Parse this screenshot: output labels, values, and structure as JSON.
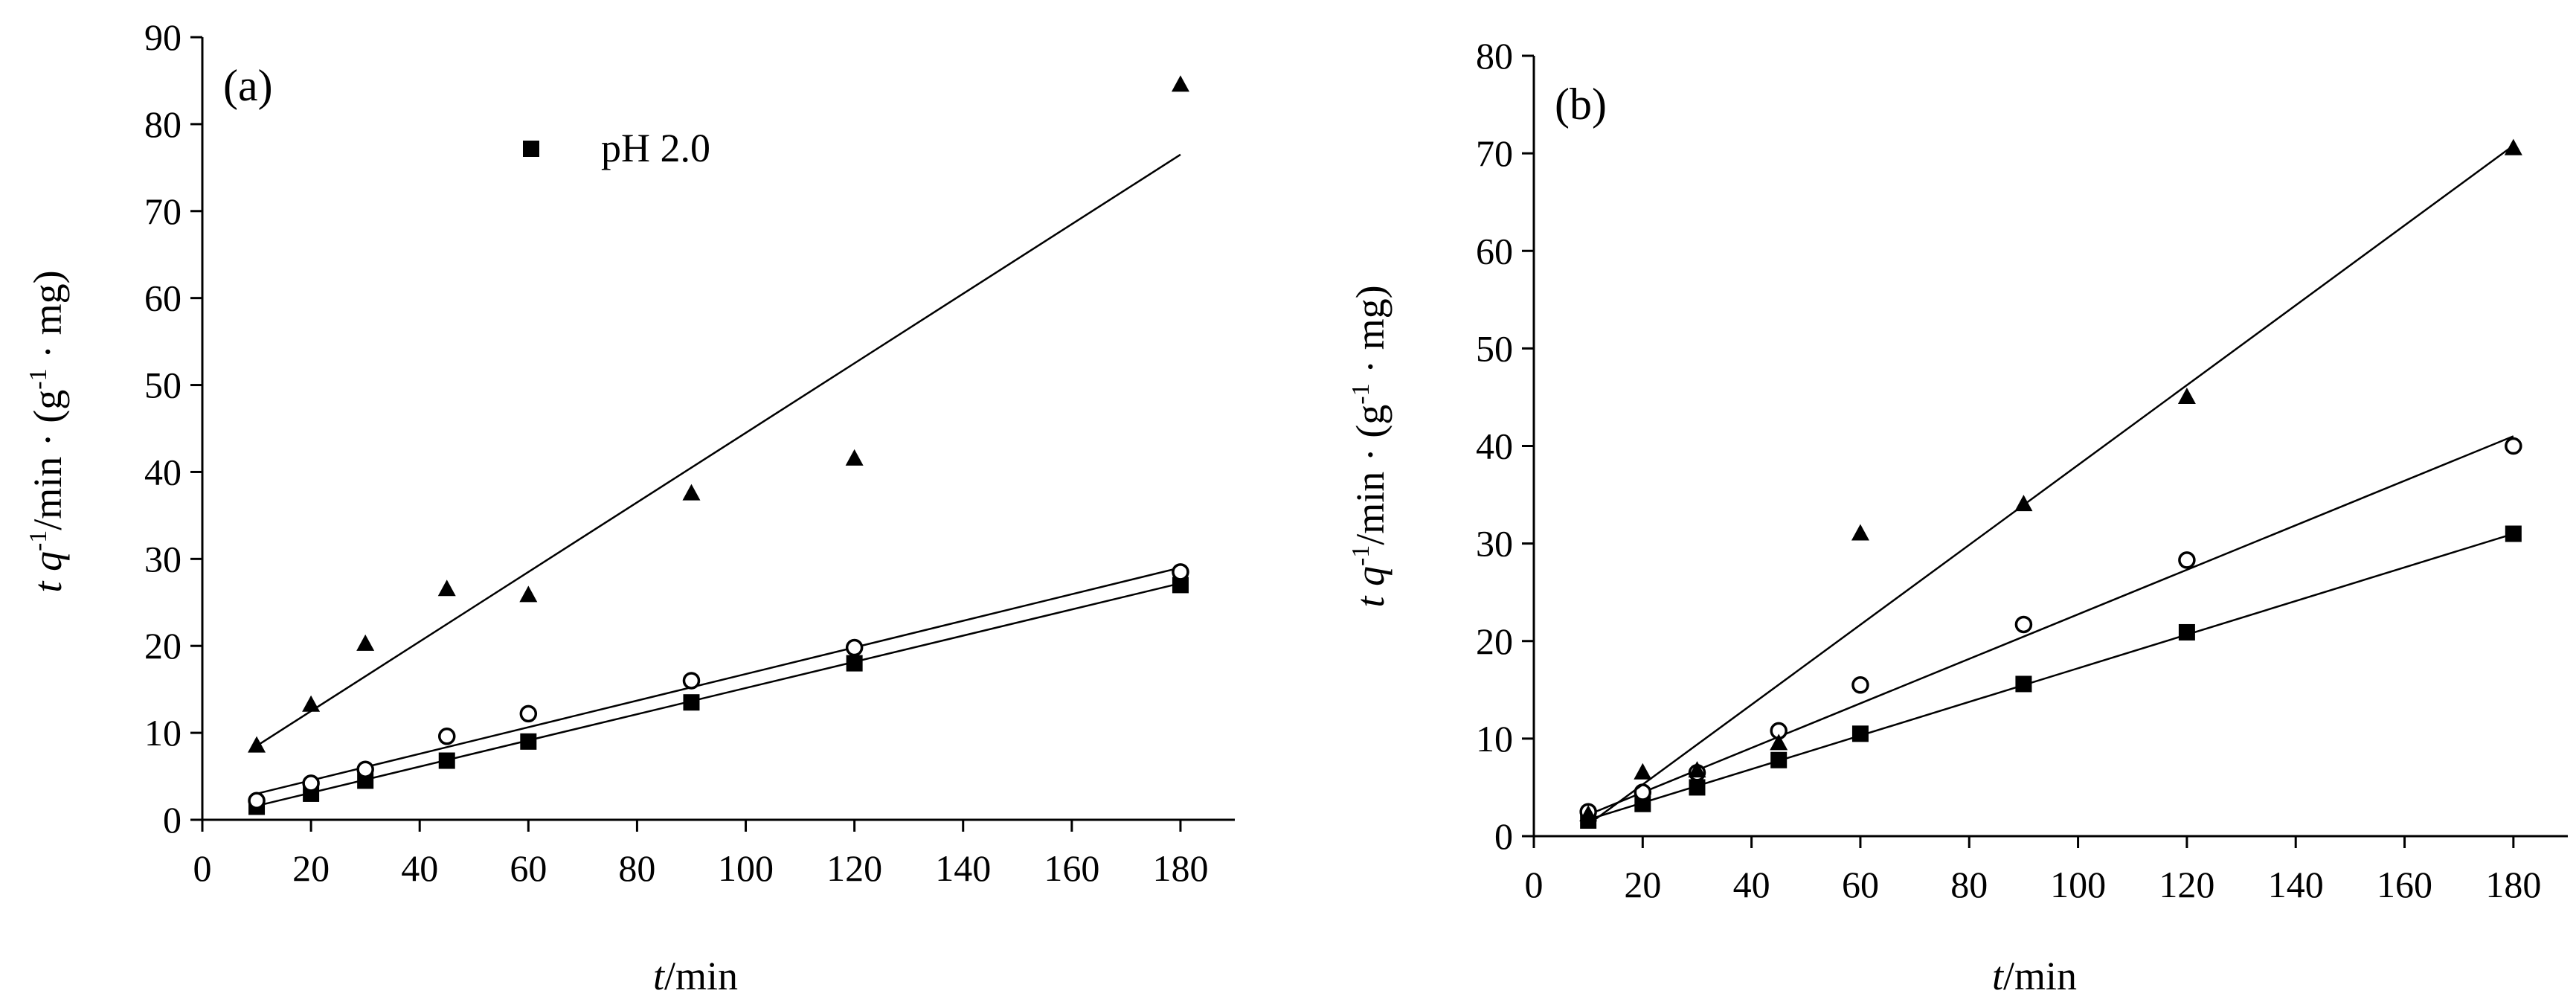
{
  "chart_data": [
    {
      "type": "scatter",
      "panel_label": "(a)",
      "xlabel": {
        "italic": "t",
        "rest": "/min"
      },
      "ylabel": {
        "italic_t": "t",
        "italic_q": "q",
        "sup1": "-1",
        "mid": "/min · (g",
        "sup2": "-1",
        "end": " · mg)"
      },
      "xlim": [
        0,
        190
      ],
      "ylim": [
        0,
        90
      ],
      "xticks": [
        0,
        20,
        40,
        60,
        80,
        100,
        120,
        140,
        160,
        180
      ],
      "yticks": [
        0,
        10,
        20,
        30,
        40,
        50,
        60,
        70,
        80,
        90
      ],
      "legend": [
        {
          "marker": "square",
          "label": "pH 2.0"
        }
      ],
      "series": [
        {
          "marker": "square",
          "x": [
            10,
            20,
            30,
            45,
            60,
            90,
            120,
            180
          ],
          "y": [
            1.5,
            3.0,
            4.5,
            6.8,
            9.0,
            13.5,
            18.0,
            27.0
          ],
          "fit": [
            [
              10,
              1.6
            ],
            [
              180,
              27.2
            ]
          ]
        },
        {
          "marker": "circle",
          "x": [
            10,
            20,
            30,
            45,
            60,
            90,
            120,
            180
          ],
          "y": [
            2.2,
            4.2,
            5.8,
            9.6,
            12.2,
            16.0,
            19.8,
            28.5
          ],
          "fit": [
            [
              10,
              3.0
            ],
            [
              180,
              29.0
            ]
          ]
        },
        {
          "marker": "triangle",
          "x": [
            10,
            20,
            30,
            45,
            60,
            90,
            120,
            180
          ],
          "y": [
            8.5,
            13.2,
            20.2,
            26.5,
            25.8,
            37.5,
            41.5,
            84.5
          ],
          "fit": [
            [
              10,
              8.5
            ],
            [
              180,
              76.5
            ]
          ]
        }
      ]
    },
    {
      "type": "scatter",
      "panel_label": "(b)",
      "xlabel": {
        "italic": "t",
        "rest": "/min"
      },
      "ylabel": {
        "italic_t": "t",
        "italic_q": "q",
        "sup1": "-1",
        "mid": "/min · (g",
        "sup2": "-1",
        "end": " · mg)"
      },
      "xlim": [
        0,
        190
      ],
      "ylim": [
        0,
        80
      ],
      "xticks": [
        0,
        20,
        40,
        60,
        80,
        100,
        120,
        140,
        160,
        180
      ],
      "yticks": [
        0,
        10,
        20,
        30,
        40,
        50,
        60,
        70,
        80
      ],
      "legend": [],
      "series": [
        {
          "marker": "square",
          "x": [
            10,
            20,
            30,
            45,
            60,
            90,
            120,
            180
          ],
          "y": [
            1.6,
            3.3,
            5.0,
            7.8,
            10.5,
            15.6,
            20.9,
            31.0
          ],
          "fit": [
            [
              10,
              1.7
            ],
            [
              180,
              31.0
            ]
          ]
        },
        {
          "marker": "circle",
          "x": [
            10,
            20,
            30,
            45,
            60,
            90,
            120,
            180
          ],
          "y": [
            2.5,
            4.5,
            6.5,
            10.8,
            15.5,
            21.7,
            28.3,
            40.0
          ],
          "fit": [
            [
              10,
              2.2
            ],
            [
              180,
              41.0
            ]
          ]
        },
        {
          "marker": "triangle",
          "x": [
            10,
            20,
            30,
            45,
            60,
            90,
            120,
            180
          ],
          "y": [
            2.2,
            6.5,
            6.7,
            9.5,
            31.0,
            34.0,
            45.0,
            70.5
          ],
          "fit": [
            [
              10,
              1.2
            ],
            [
              180,
              70.8
            ]
          ]
        }
      ]
    }
  ]
}
